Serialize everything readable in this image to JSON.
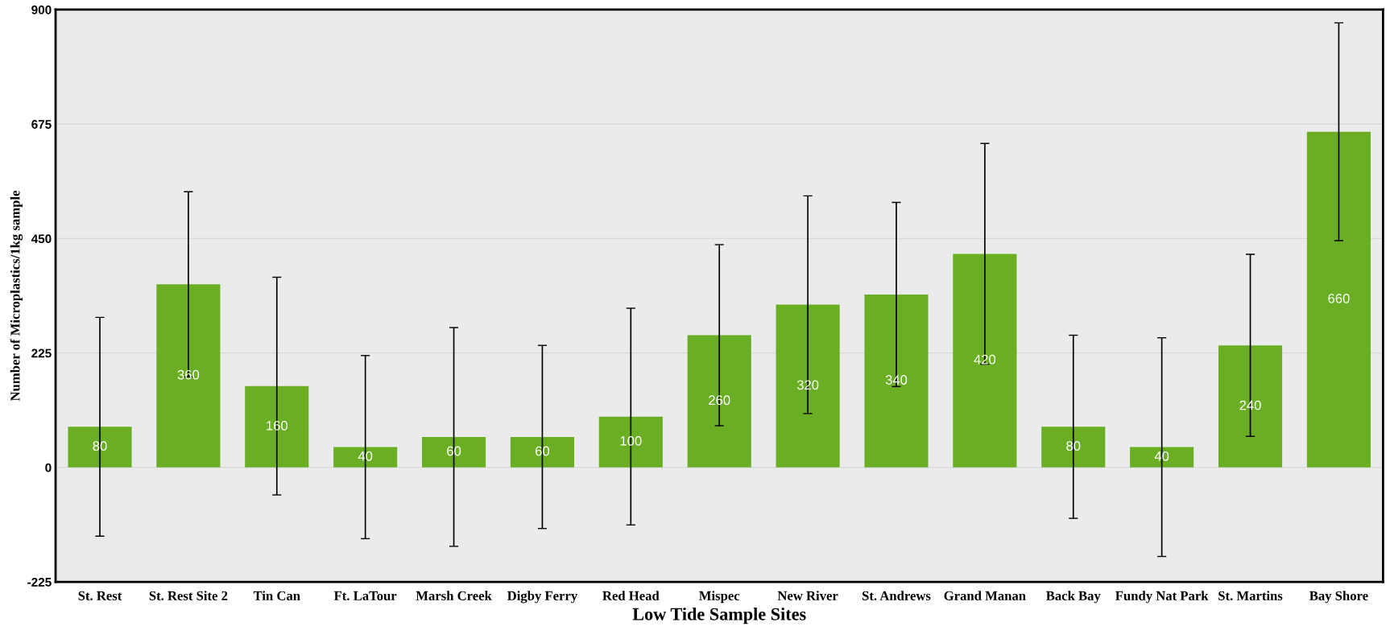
{
  "chart_data": {
    "type": "bar",
    "xlabel": "Low Tide Sample Sites",
    "ylabel": "Number of Microplastics/1kg sample",
    "categories": [
      "St. Rest",
      "St. Rest Site 2",
      "Tin Can",
      "Ft. LaTour",
      "Marsh Creek",
      "Digby Ferry",
      "Red Head",
      "Mispec",
      "New River",
      "St. Andrews",
      "Grand Manan",
      "Back Bay",
      "Fundy Nat Park",
      "St. Martins",
      "Bay Shore"
    ],
    "values": [
      80,
      360,
      160,
      40,
      60,
      60,
      100,
      260,
      320,
      340,
      420,
      80,
      40,
      240,
      660
    ],
    "errors": [
      215,
      182,
      214,
      180,
      215,
      180,
      213,
      178,
      214,
      181,
      217,
      180,
      215,
      179,
      214
    ],
    "color": "#6aaf23",
    "ylim": [
      -225,
      900
    ],
    "yticks": [
      -225,
      0,
      225,
      450,
      675,
      900
    ],
    "grid": "y",
    "data_labels": true
  }
}
